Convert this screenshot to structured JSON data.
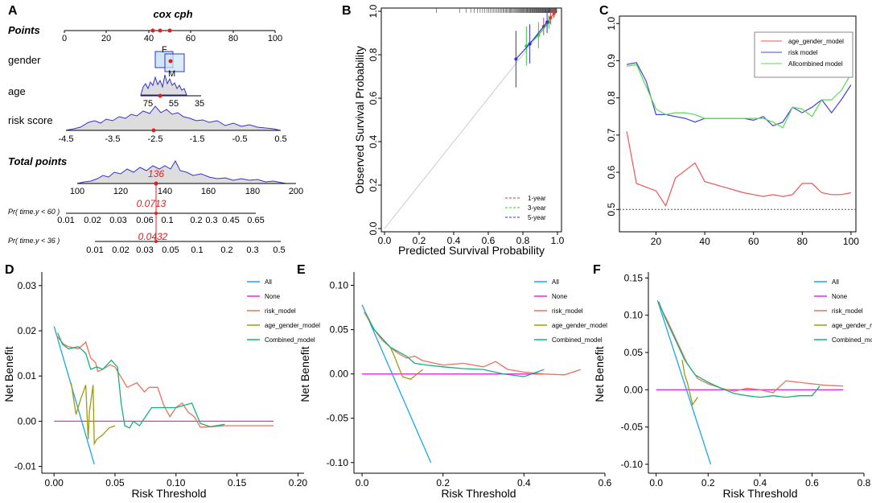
{
  "panel_labels": {
    "a": "A",
    "b": "B",
    "c": "C",
    "d": "D",
    "e": "E",
    "f": "F"
  },
  "colors": {
    "blue": "#3333cc",
    "red": "#e02020",
    "dca_all": "#1aa7e6",
    "dca_none": "#dd33dd",
    "dca_risk": "#f0705c",
    "dca_age": "#a09a10",
    "dca_comb": "#18b07a",
    "c_age": "#ee5555",
    "c_risk": "#4444dd",
    "c_all": "#55dd55"
  },
  "chart_data": [
    {
      "type": "nomogram",
      "panel": "A",
      "title": "cox cph",
      "rows": [
        {
          "label": "Points",
          "bold": true,
          "ticks": [
            "0",
            "20",
            "40",
            "60",
            "80",
            "100"
          ]
        },
        {
          "label": "gender",
          "ticks": [],
          "box_labels": [
            "F",
            "M"
          ]
        },
        {
          "label": "age",
          "ticks": [
            "75",
            "55",
            "35"
          ]
        },
        {
          "label": "risk score",
          "ticks": [
            "-4.5",
            "-3.5",
            "-2.5",
            "-1.5",
            "-0.5",
            "0.5"
          ]
        },
        {
          "label": "Total points",
          "bold": true,
          "ticks": [
            "100",
            "120",
            "140",
            "160",
            "180",
            "200"
          ]
        },
        {
          "label": "Pr( time.y < 60 )",
          "ticks": [
            "0.01",
            "0.02",
            "0.03",
            "0.06",
            "0.1",
            "0.2",
            "0.3",
            "0.45",
            "0.65"
          ]
        },
        {
          "label": "Pr( time.y < 36 )",
          "ticks": [
            "0.01",
            "0.02",
            "0.03",
            "0.05",
            "0.1",
            "0.2",
            "0.3",
            "0.5"
          ]
        }
      ],
      "annotations": {
        "total": "136",
        "p60": "0.0713",
        "p36": "0.0432"
      }
    },
    {
      "type": "calibration",
      "panel": "B",
      "xlabel": "Predicted Survival Probability",
      "ylabel": "Observed  Survival Probability",
      "xticks": [
        "0.0",
        "0.2",
        "0.4",
        "0.6",
        "0.8",
        "1.0"
      ],
      "yticks": [
        "0.0",
        "0.2",
        "0.4",
        "0.6",
        "0.8",
        "1.0"
      ],
      "xlim": [
        -0.02,
        1.02
      ],
      "ylim": [
        -0.02,
        1.02
      ],
      "series": [
        {
          "name": "1-year",
          "color": "#e03a3a",
          "x": [
            0.92,
            0.96,
            0.98
          ],
          "y": [
            0.93,
            0.97,
            0.99
          ],
          "err": [
            0.04,
            0.03,
            0.02
          ]
        },
        {
          "name": "3-year",
          "color": "#33cc33",
          "x": [
            0.82,
            0.89,
            0.95
          ],
          "y": [
            0.84,
            0.89,
            0.95
          ],
          "err": [
            0.09,
            0.06,
            0.03
          ]
        },
        {
          "name": "5-year",
          "color": "#3333dd",
          "x": [
            0.76,
            0.84,
            0.94
          ],
          "y": [
            0.78,
            0.85,
            0.95
          ],
          "err": [
            0.13,
            0.09,
            0.05
          ]
        }
      ]
    },
    {
      "type": "line",
      "panel": "C",
      "xticks": [
        "20",
        "40",
        "60",
        "80",
        "100"
      ],
      "yticks": [
        "0.5",
        "0.6",
        "0.7",
        "0.8",
        "0.9",
        "1.0"
      ],
      "xlim": [
        5,
        102
      ],
      "ylim": [
        0.44,
        1.02
      ],
      "hline": 0.5,
      "series": [
        {
          "name": "age_gender_model",
          "color": "#ee5555",
          "x": [
            8,
            12,
            20,
            24,
            28,
            32,
            36,
            40,
            48,
            56,
            60,
            64,
            68,
            72,
            76,
            80,
            84,
            88,
            92,
            96,
            100
          ],
          "y": [
            0.71,
            0.57,
            0.55,
            0.51,
            0.585,
            0.605,
            0.625,
            0.575,
            0.56,
            0.545,
            0.54,
            0.535,
            0.54,
            0.535,
            0.54,
            0.57,
            0.57,
            0.545,
            0.54,
            0.54,
            0.545
          ]
        },
        {
          "name": "risk model",
          "color": "#4444dd",
          "x": [
            8,
            12,
            16,
            20,
            24,
            28,
            32,
            36,
            40,
            48,
            56,
            60,
            64,
            68,
            72,
            76,
            80,
            84,
            88,
            92,
            96,
            100
          ],
          "y": [
            0.89,
            0.895,
            0.845,
            0.755,
            0.755,
            0.75,
            0.745,
            0.735,
            0.745,
            0.745,
            0.745,
            0.74,
            0.75,
            0.725,
            0.735,
            0.775,
            0.76,
            0.775,
            0.795,
            0.76,
            0.795,
            0.835
          ]
        },
        {
          "name": "Allcombined model",
          "color": "#55dd55",
          "x": [
            8,
            12,
            16,
            20,
            24,
            28,
            32,
            36,
            40,
            48,
            56,
            60,
            64,
            68,
            72,
            76,
            80,
            84,
            88,
            92,
            96,
            100
          ],
          "y": [
            0.885,
            0.89,
            0.83,
            0.77,
            0.755,
            0.76,
            0.76,
            0.755,
            0.745,
            0.745,
            0.745,
            0.745,
            0.745,
            0.735,
            0.72,
            0.775,
            0.77,
            0.75,
            0.795,
            0.795,
            0.82,
            0.865
          ]
        }
      ]
    },
    {
      "type": "line",
      "panel": "D",
      "xlabel": "Risk Threshold",
      "ylabel": "Net Benefit",
      "xticks": [
        "0.00",
        "0.05",
        "0.10",
        "0.15",
        "0.20"
      ],
      "yticks": [
        "-0.01",
        "0.00",
        "0.01",
        "0.02",
        "0.03"
      ],
      "xlim": [
        -0.01,
        0.205
      ],
      "ylim": [
        -0.0115,
        0.033
      ],
      "series": [
        {
          "name": "All",
          "color": "#1aa7e6",
          "x": [
            0,
            0.033
          ],
          "y": [
            0.021,
            -0.0095
          ]
        },
        {
          "name": "None",
          "color": "#dd33dd",
          "x": [
            0,
            0.18
          ],
          "y": [
            0,
            0
          ]
        },
        {
          "name": "risk_model",
          "color": "#f0705c",
          "x": [
            0.002,
            0.008,
            0.012,
            0.02,
            0.026,
            0.03,
            0.034,
            0.036,
            0.04,
            0.046,
            0.05,
            0.06,
            0.064,
            0.068,
            0.074,
            0.078,
            0.085,
            0.09,
            0.095,
            0.1,
            0.105,
            0.11,
            0.115,
            0.12,
            0.13,
            0.14,
            0.18
          ],
          "y": [
            0.019,
            0.017,
            0.0165,
            0.016,
            0.0175,
            0.014,
            0.013,
            0.011,
            0.0115,
            0.0125,
            0.012,
            0.0075,
            0.008,
            0.0085,
            0.0065,
            0.0075,
            0.0075,
            0.0035,
            0.001,
            0.003,
            0.004,
            0.002,
            0.001,
            -0.0013,
            -0.0012,
            -0.001,
            -0.001
          ]
        },
        {
          "name": "age_gender_model",
          "color": "#a09a10",
          "x": [
            0.014,
            0.018,
            0.022,
            0.026,
            0.028,
            0.029,
            0.032,
            0.033,
            0.035,
            0.04,
            0.045,
            0.05
          ],
          "y": [
            0.0085,
            0.0015,
            0.005,
            0.008,
            -0.004,
            0.002,
            0.008,
            -0.005,
            -0.004,
            -0.003,
            -0.0015,
            -0.001
          ]
        },
        {
          "name": "Combined_model",
          "color": "#18b07a",
          "x": [
            0.003,
            0.007,
            0.012,
            0.02,
            0.026,
            0.03,
            0.035,
            0.04,
            0.047,
            0.052,
            0.055,
            0.058,
            0.062,
            0.065,
            0.07,
            0.08,
            0.095,
            0.1,
            0.113,
            0.12,
            0.128,
            0.14
          ],
          "y": [
            0.0195,
            0.017,
            0.016,
            0.0165,
            0.015,
            0.0115,
            0.012,
            0.0115,
            0.0135,
            0.012,
            0.004,
            -0.001,
            -0.0015,
            0.0,
            -0.001,
            0.003,
            0.003,
            0.003,
            0.004,
            -0.0005,
            -0.0012,
            -0.0007
          ]
        }
      ]
    },
    {
      "type": "line",
      "panel": "E",
      "xlabel": "Risk Threshold",
      "ylabel": "Net Benefit",
      "xticks": [
        "0.0",
        "0.2",
        "0.4",
        "0.6"
      ],
      "yticks": [
        "-0.10",
        "-0.05",
        "0.00",
        "0.05",
        "0.10"
      ],
      "xlim": [
        -0.02,
        0.6
      ],
      "ylim": [
        -0.112,
        0.115
      ],
      "series": [
        {
          "name": "All",
          "color": "#1aa7e6",
          "x": [
            0,
            0.17
          ],
          "y": [
            0.078,
            -0.1
          ]
        },
        {
          "name": "None",
          "color": "#dd33dd",
          "x": [
            0,
            0.45
          ],
          "y": [
            0,
            0
          ]
        },
        {
          "name": "risk_model",
          "color": "#f0705c",
          "x": [
            0.005,
            0.03,
            0.05,
            0.07,
            0.09,
            0.11,
            0.13,
            0.15,
            0.2,
            0.25,
            0.3,
            0.33,
            0.36,
            0.4,
            0.45,
            0.5,
            0.54
          ],
          "y": [
            0.07,
            0.05,
            0.038,
            0.03,
            0.023,
            0.018,
            0.02,
            0.015,
            0.01,
            0.012,
            0.008,
            0.014,
            0.005,
            0.002,
            0.0,
            -0.001,
            0.005
          ]
        },
        {
          "name": "age_gender_model",
          "color": "#a09a10",
          "x": [
            0.07,
            0.08,
            0.09,
            0.1,
            0.12,
            0.15
          ],
          "y": [
            0.03,
            0.02,
            0.008,
            -0.003,
            -0.006,
            0.005
          ]
        },
        {
          "name": "Combined_model",
          "color": "#18b07a",
          "x": [
            0.01,
            0.03,
            0.05,
            0.07,
            0.09,
            0.11,
            0.13,
            0.16,
            0.2,
            0.25,
            0.3,
            0.35,
            0.4,
            0.45
          ],
          "y": [
            0.068,
            0.05,
            0.04,
            0.03,
            0.025,
            0.02,
            0.012,
            0.01,
            0.008,
            0.006,
            0.005,
            0.0,
            -0.003,
            0.005
          ]
        }
      ]
    },
    {
      "type": "line",
      "panel": "F",
      "xlabel": "Risk Threshold",
      "ylabel": "Net Benefit",
      "xticks": [
        "0.0",
        "0.2",
        "0.4",
        "0.6",
        "0.8"
      ],
      "yticks": [
        "-0.10",
        "-0.05",
        "0.00",
        "0.05",
        "0.10",
        "0.15"
      ],
      "xlim": [
        -0.03,
        0.8
      ],
      "ylim": [
        -0.112,
        0.158
      ],
      "series": [
        {
          "name": "All",
          "color": "#1aa7e6",
          "x": [
            0.005,
            0.21
          ],
          "y": [
            0.12,
            -0.1
          ]
        },
        {
          "name": "None",
          "color": "#dd33dd",
          "x": [
            0,
            0.72
          ],
          "y": [
            0,
            0
          ]
        },
        {
          "name": "risk_model",
          "color": "#f0705c",
          "x": [
            0.01,
            0.04,
            0.06,
            0.08,
            0.1,
            0.12,
            0.14,
            0.16,
            0.2,
            0.25,
            0.3,
            0.35,
            0.4,
            0.45,
            0.5,
            0.55,
            0.6,
            0.65,
            0.72
          ],
          "y": [
            0.115,
            0.095,
            0.08,
            0.065,
            0.05,
            0.035,
            0.025,
            0.015,
            0.008,
            0.002,
            -0.002,
            0.002,
            0.0,
            -0.004,
            0.012,
            0.01,
            0.008,
            0.006,
            0.005
          ]
        },
        {
          "name": "age_gender_model",
          "color": "#a09a10",
          "x": [
            0.1,
            0.11,
            0.12,
            0.13,
            0.14,
            0.16
          ],
          "y": [
            0.04,
            0.02,
            0.01,
            -0.005,
            -0.02,
            -0.01
          ]
        },
        {
          "name": "Combined_model",
          "color": "#18b07a",
          "x": [
            0.01,
            0.03,
            0.05,
            0.07,
            0.09,
            0.11,
            0.13,
            0.15,
            0.2,
            0.25,
            0.3,
            0.35,
            0.4,
            0.45,
            0.5,
            0.55,
            0.6,
            0.63
          ],
          "y": [
            0.118,
            0.1,
            0.085,
            0.07,
            0.055,
            0.04,
            0.03,
            0.02,
            0.01,
            0.002,
            -0.005,
            -0.008,
            -0.01,
            -0.008,
            -0.01,
            -0.008,
            -0.008,
            0.005
          ]
        }
      ]
    }
  ]
}
